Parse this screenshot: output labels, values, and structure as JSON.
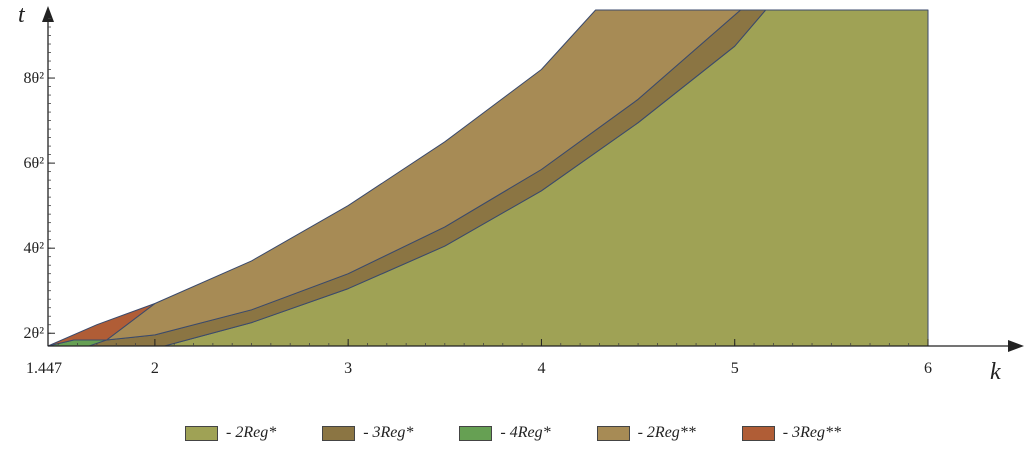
{
  "chart_data": {
    "type": "area",
    "title": "",
    "xlabel": "k",
    "ylabel": "t",
    "x_ticks": [
      "1.447",
      "2",
      "3",
      "4",
      "5",
      "6"
    ],
    "x_tick_values": [
      1.447,
      2,
      3,
      4,
      5,
      6
    ],
    "y_ticks": [
      {
        "value": 2,
        "label": "2θ²"
      },
      {
        "value": 4,
        "label": "4θ²"
      },
      {
        "value": 6,
        "label": "6θ²"
      },
      {
        "value": 8,
        "label": "8θ²"
      }
    ],
    "xlim": [
      1.447,
      6
    ],
    "ylim": [
      1.7,
      9.6
    ],
    "colors": {
      "2Reg*": "#9fa255",
      "3Reg*": "#8b7543",
      "4Reg*": "#66a053",
      "2Reg**": "#a78b55",
      "3Reg**": "#b05d36"
    },
    "regions": [
      {
        "name": "- 2Reg*",
        "color_key": "2Reg*",
        "polygon": [
          [
            2.05,
            1.7
          ],
          [
            2.5,
            2.25
          ],
          [
            3.0,
            3.05
          ],
          [
            3.5,
            4.05
          ],
          [
            4.0,
            5.35
          ],
          [
            4.5,
            6.95
          ],
          [
            5.0,
            8.75
          ],
          [
            5.16,
            9.6
          ],
          [
            6.0,
            9.6
          ],
          [
            6.0,
            1.7
          ]
        ]
      },
      {
        "name": "- 3Reg*",
        "color_key": "3Reg*",
        "polygon": [
          [
            1.447,
            1.7
          ],
          [
            1.75,
            1.84
          ],
          [
            2.0,
            1.96
          ],
          [
            2.5,
            2.55
          ],
          [
            3.0,
            3.4
          ],
          [
            3.5,
            4.5
          ],
          [
            4.0,
            5.85
          ],
          [
            4.5,
            7.5
          ],
          [
            5.03,
            9.6
          ],
          [
            5.16,
            9.6
          ],
          [
            5.0,
            8.75
          ],
          [
            4.5,
            6.95
          ],
          [
            4.0,
            5.35
          ],
          [
            3.5,
            4.05
          ],
          [
            3.0,
            3.05
          ],
          [
            2.5,
            2.25
          ],
          [
            2.05,
            1.7
          ]
        ]
      },
      {
        "name": "- 4Reg*",
        "color_key": "4Reg*",
        "polygon": [
          [
            1.447,
            1.7
          ],
          [
            1.58,
            1.84
          ],
          [
            1.75,
            1.84
          ],
          [
            1.66,
            1.7
          ]
        ]
      },
      {
        "name": "- 2Reg**",
        "color_key": "2Reg**",
        "polygon": [
          [
            1.75,
            1.84
          ],
          [
            2.0,
            2.7
          ],
          [
            2.5,
            3.7
          ],
          [
            3.0,
            5.0
          ],
          [
            3.5,
            6.5
          ],
          [
            4.0,
            8.2
          ],
          [
            4.28,
            9.6
          ],
          [
            5.03,
            9.6
          ],
          [
            4.5,
            7.5
          ],
          [
            4.0,
            5.85
          ],
          [
            3.5,
            4.5
          ],
          [
            3.0,
            3.4
          ],
          [
            2.5,
            2.55
          ],
          [
            2.0,
            1.96
          ]
        ]
      },
      {
        "name": "- 3Reg**",
        "color_key": "3Reg**",
        "polygon": [
          [
            1.447,
            1.7
          ],
          [
            1.7,
            2.2
          ],
          [
            2.0,
            2.7
          ],
          [
            1.75,
            1.84
          ],
          [
            1.58,
            1.84
          ]
        ]
      }
    ]
  },
  "legend": [
    {
      "label": "- 2Reg*",
      "color": "#9fa255"
    },
    {
      "label": "- 3Reg*",
      "color": "#8b7543"
    },
    {
      "label": "- 4Reg*",
      "color": "#66a053"
    },
    {
      "label": "- 2Reg**",
      "color": "#a78b55"
    },
    {
      "label": "- 3Reg**",
      "color": "#b05d36"
    }
  ]
}
